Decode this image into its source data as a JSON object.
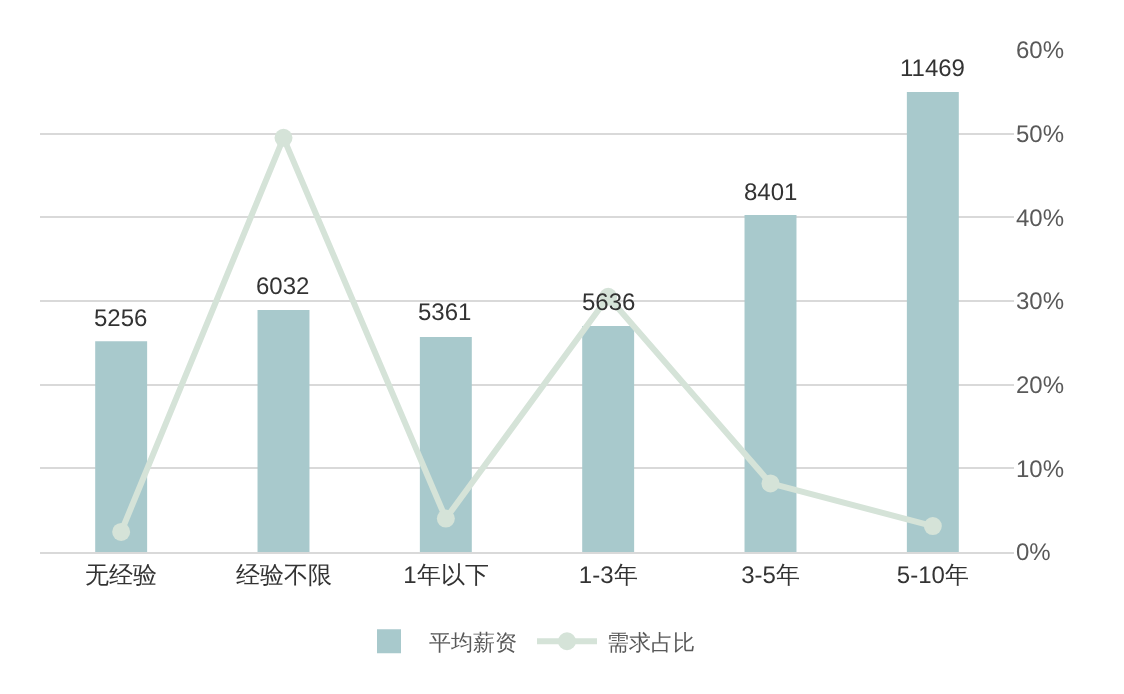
{
  "chart_data": {
    "type": "bar",
    "categories": [
      "无经验",
      "经验不限",
      "1年以下",
      "1-3年",
      "3-5年",
      "5-10年"
    ],
    "series": [
      {
        "name": "平均薪资",
        "color": "#a8c9cc",
        "values": [
          5256,
          6032,
          5361,
          5636,
          8401,
          11469
        ],
        "value_labels": [
          "5256",
          "6032",
          "5361",
          "5636",
          "8401",
          "11469"
        ]
      },
      {
        "name": "需求占比",
        "type": "line",
        "axis": "y2",
        "color": "#d5e3d8",
        "marker": "circle",
        "values": [
          2.4,
          49.5,
          4.0,
          30.5,
          8.2,
          3.1
        ]
      }
    ],
    "y2lim": [
      0,
      60
    ],
    "y2ticks": [
      {
        "value": 0,
        "label": "0%"
      },
      {
        "value": 10,
        "label": "10%"
      },
      {
        "value": 20,
        "label": "20%"
      },
      {
        "value": 30,
        "label": "30%"
      },
      {
        "value": 40,
        "label": "40%"
      },
      {
        "value": 50,
        "label": "50%"
      },
      {
        "value": 60,
        "label": "60%"
      }
    ],
    "tick_labels": [
      "x",
      "y2"
    ],
    "grid": "y2",
    "legend": "bottom"
  }
}
